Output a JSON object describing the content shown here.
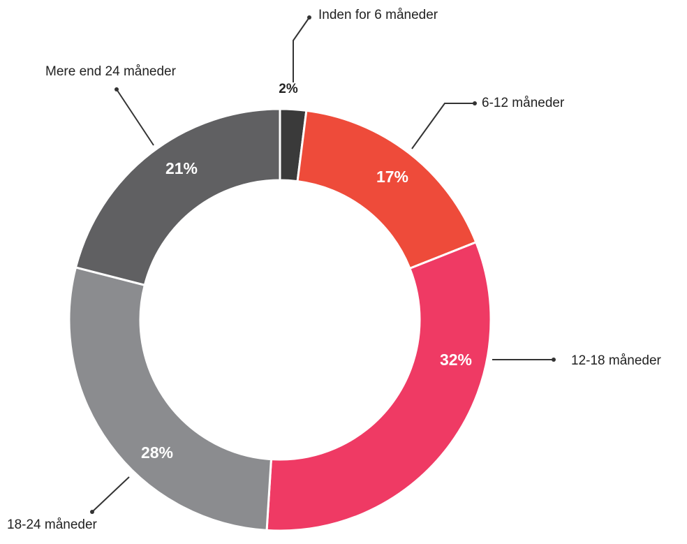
{
  "chart_data": {
    "type": "donut",
    "categories": [
      "Inden for 6 måneder",
      "6-12 måneder",
      "12-18 måneder",
      "18-24 måneder",
      "Mere end 24 måneder"
    ],
    "values": [
      2,
      17,
      32,
      28,
      21
    ],
    "value_labels": [
      "2%",
      "17%",
      "32%",
      "28%",
      "21%"
    ],
    "colors": [
      "#3a3a3a",
      "#ee4b3a",
      "#ef3a64",
      "#8b8c8f",
      "#606062"
    ]
  }
}
